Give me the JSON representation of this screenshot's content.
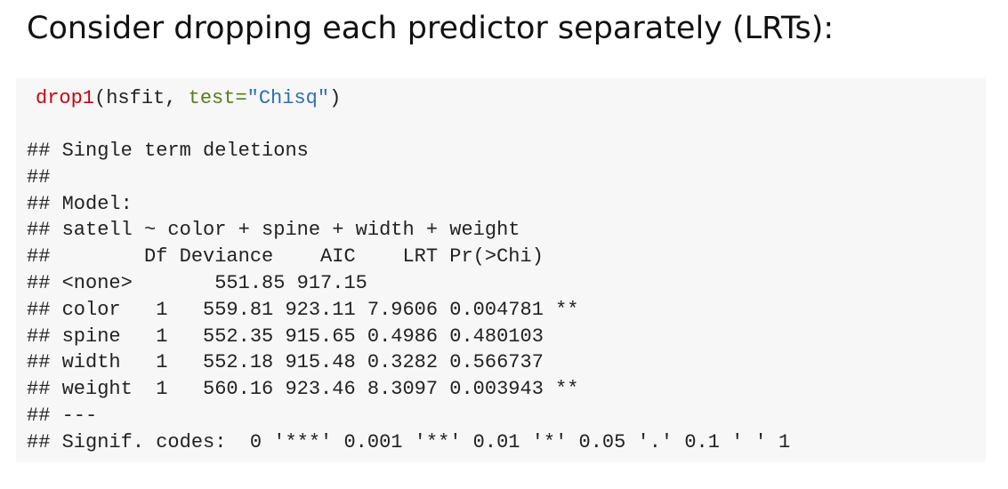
{
  "heading": "Consider dropping each predictor separately (LRTs):",
  "code": {
    "function": "drop1",
    "args_open": "(hsfit, ",
    "arg_name": "test=",
    "string": "\"Chisq\"",
    "close": ")"
  },
  "output": [
    "## Single term deletions",
    "##",
    "## Model:",
    "## satell ~ color + spine + width + weight",
    "##        Df Deviance    AIC    LRT Pr(>Chi)",
    "## <none>       551.85 917.15",
    "## color   1   559.81 923.11 7.9606 0.004781 **",
    "## spine   1   552.35 915.65 0.4986 0.480103",
    "## width   1   552.18 915.48 0.3282 0.566737",
    "## weight  1   560.16 923.46 8.3097 0.003943 **",
    "## ---",
    "## Signif. codes:  0 '***' 0.001 '**' 0.01 '*' 0.05 '.' 0.1 ' ' 1"
  ]
}
